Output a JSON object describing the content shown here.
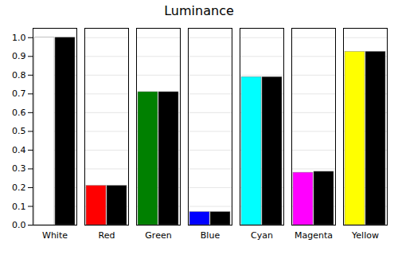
{
  "chart_data": {
    "type": "bar",
    "title": "Luminance",
    "categories": [
      "White",
      "Red",
      "Green",
      "Blue",
      "Cyan",
      "Magenta",
      "Yellow"
    ],
    "series": [
      {
        "values": [
          1.0,
          0.21,
          0.71,
          0.07,
          0.79,
          0.28,
          0.925
        ],
        "colors": [
          "#ffffff",
          "#ff0000",
          "#008000",
          "#0000ff",
          "#00ffff",
          "#ff00ff",
          "#ffff00"
        ]
      },
      {
        "values": [
          1.0,
          0.21,
          0.71,
          0.07,
          0.79,
          0.285,
          0.925
        ],
        "color": "#000000"
      }
    ],
    "ylim": [
      0.0,
      1.05
    ],
    "yticks": [
      {
        "value": 0,
        "label": "0.0"
      },
      0.1,
      0.2,
      0.3,
      0.4,
      0.5,
      0.6,
      0.7,
      0.8,
      0.9,
      {
        "value": 1,
        "label": "1.0"
      }
    ],
    "grid": true
  }
}
